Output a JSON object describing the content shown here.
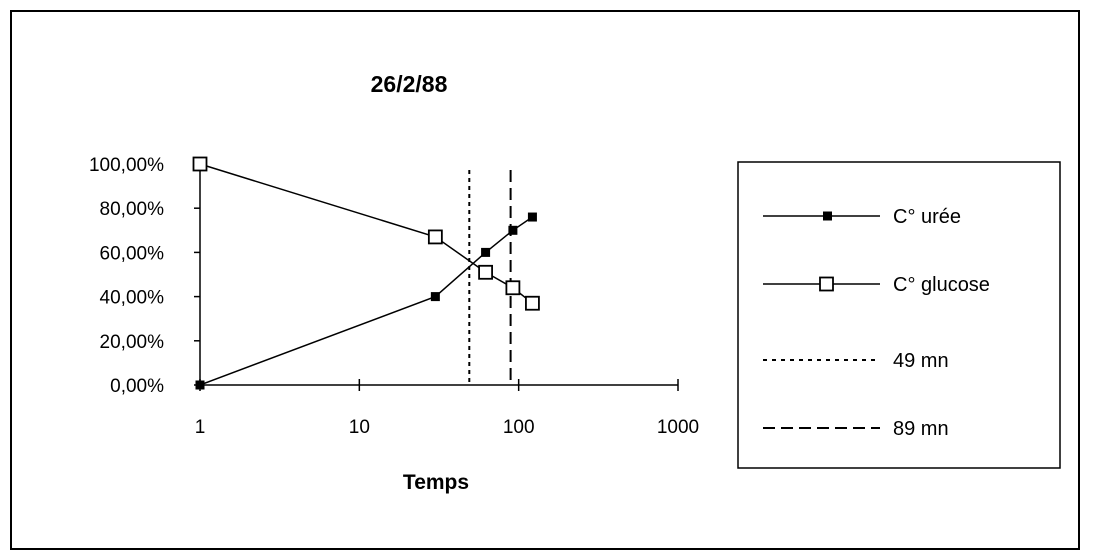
{
  "chart_data": {
    "type": "line",
    "title": "26/2/88",
    "xlabel": "Temps",
    "ylabel": "",
    "x_scale": "log",
    "xlim": [
      1,
      1000
    ],
    "ylim": [
      0,
      100
    ],
    "x_ticks": [
      {
        "value": 1,
        "label": "1"
      },
      {
        "value": 10,
        "label": "10"
      },
      {
        "value": 100,
        "label": "100"
      },
      {
        "value": 1000,
        "label": "1000"
      }
    ],
    "y_ticks": [
      {
        "value": 0,
        "label": "0,00%"
      },
      {
        "value": 20,
        "label": "20,00%"
      },
      {
        "value": 40,
        "label": "40,00%"
      },
      {
        "value": 60,
        "label": "60,00%"
      },
      {
        "value": 80,
        "label": "80,00%"
      },
      {
        "value": 100,
        "label": "100,00%"
      }
    ],
    "series": [
      {
        "name": "C° urée",
        "marker": "filled-square",
        "line": "solid",
        "x": [
          1,
          30,
          62,
          92,
          122
        ],
        "y": [
          0,
          40,
          60,
          70,
          76
        ]
      },
      {
        "name": "C° glucose",
        "marker": "open-square",
        "line": "solid",
        "x": [
          1,
          30,
          62,
          92,
          122
        ],
        "y": [
          100,
          67,
          51,
          44,
          37
        ]
      }
    ],
    "reference_lines": [
      {
        "name": "49 mn",
        "x": 49,
        "style": "dotted"
      },
      {
        "name": "89 mn",
        "x": 89,
        "style": "dashed"
      }
    ],
    "legend_position": "right",
    "grid": false
  }
}
